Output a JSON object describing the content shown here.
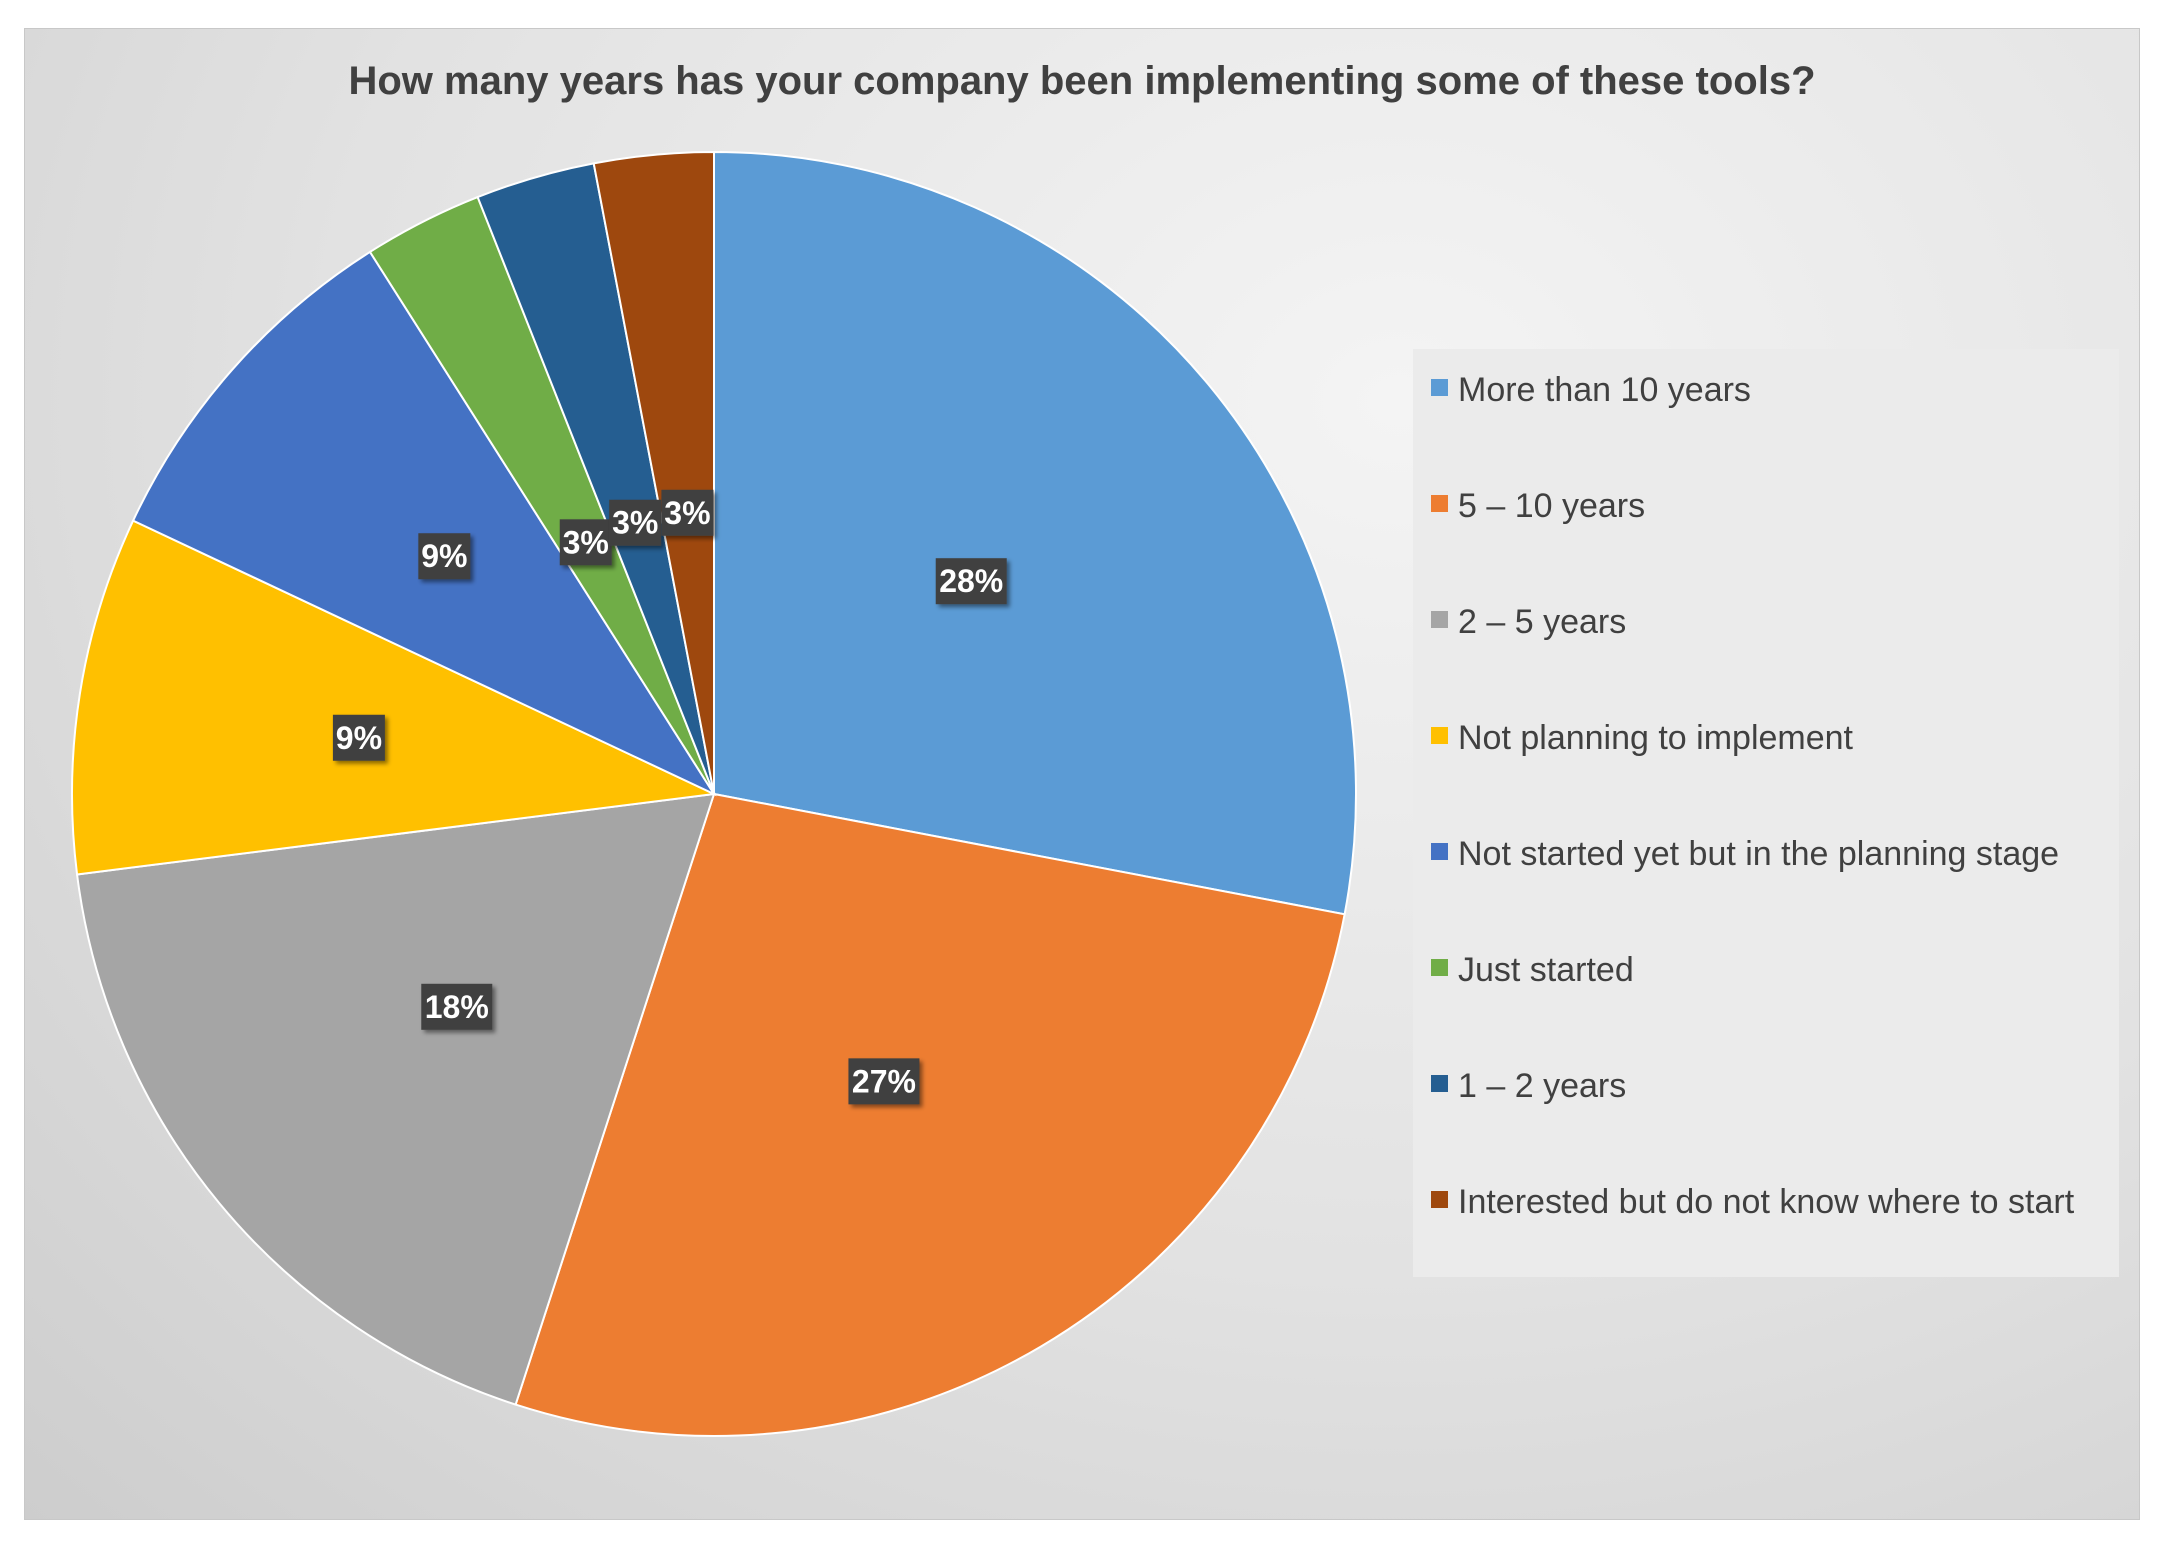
{
  "chart_data": {
    "type": "pie",
    "title": "How many years has your company been implementing some of these tools?",
    "categories": [
      "More than 10 years",
      "5 – 10 years",
      "2 – 5 years",
      "Not planning to implement",
      "Not started yet but in the planning stage",
      "Just started",
      "1 – 2 years",
      "Interested but do not know where to start"
    ],
    "values": [
      28,
      27,
      18,
      9,
      9,
      3,
      3,
      3
    ],
    "labels": [
      "28%",
      "27%",
      "18%",
      "9%",
      "9%",
      "3%",
      "3%",
      "3%"
    ],
    "colors": [
      "#5b9bd5",
      "#ed7d31",
      "#a5a5a5",
      "#ffc000",
      "#4472c4",
      "#70ad47",
      "#255e91",
      "#9e480e"
    ],
    "legend_position": "right",
    "start_angle": "12 o'clock, clockwise"
  }
}
